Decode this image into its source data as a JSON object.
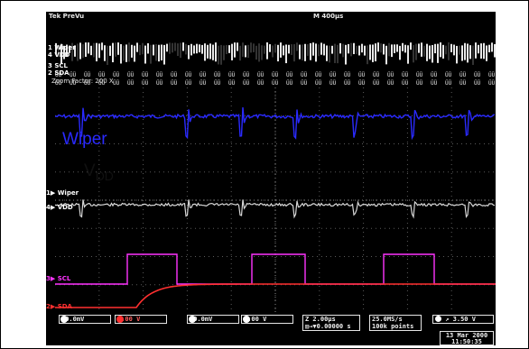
{
  "scope": {
    "top_left": "Tek PreVu",
    "top_right": "M 400µs",
    "zoom_label": "Zoom Factor: 200 X",
    "overview_labels": [
      "Wiper",
      "VDD",
      "SCL",
      "SDA"
    ],
    "overview_numbers": [
      "1",
      "4",
      "3",
      "2"
    ],
    "channel_labels": {
      "ch1": "Wiper",
      "ch4": "VDD",
      "ch3": "SCL",
      "ch2": "SDA"
    },
    "annotation_wiper": "Wiper",
    "annotation_vdd_main": "V",
    "annotation_vdd_sub": "DD",
    "status": {
      "ch1_scale": "10.0mV",
      "ch2_scale": "5.00 V",
      "ch3_scale": "10.0mV",
      "ch4_scale": "5.00 V",
      "timebase": "Z 2.00µs",
      "delay": "▥→▼0.00000 s",
      "sample_rate": "25.0MS/s",
      "record_length": "100k points",
      "trigger": "3.50 V",
      "date": "13 Mar 2000",
      "time": "11:50:35"
    },
    "colors": {
      "wiper": "#2a2aff",
      "vdd": "#101010",
      "scl": "#ff33ff",
      "sda": "#ff3030"
    }
  }
}
